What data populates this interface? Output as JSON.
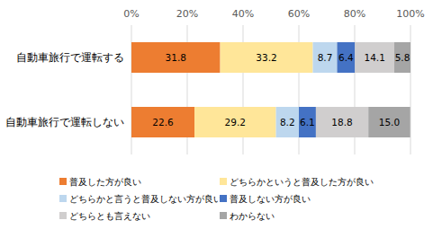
{
  "chart_data": {
    "type": "bar",
    "orientation": "horizontal",
    "stacked": true,
    "data_labels": true,
    "grid": true,
    "legend": "bottom",
    "categories": [
      "自動車旅行で運転する",
      "自動車旅行で運転しない"
    ],
    "series": [
      {
        "name": "普及した方が良い",
        "color": "#ed7d31",
        "values": [
          31.8,
          22.6
        ]
      },
      {
        "name": "どちらかというと普及した方が良い",
        "color": "#ffe699",
        "values": [
          33.2,
          29.2
        ]
      },
      {
        "name": "どちらかと言うと普及しない方が良い",
        "color": "#bdd7ee",
        "values": [
          8.7,
          8.2
        ]
      },
      {
        "name": "普及しない方が良い",
        "color": "#4472c4",
        "values": [
          6.4,
          6.1
        ]
      },
      {
        "name": "どちらとも言えない",
        "color": "#d0cece",
        "values": [
          14.1,
          18.8
        ]
      },
      {
        "name": "わからない",
        "color": "#a5a5a5",
        "values": [
          5.8,
          15.0
        ],
        "value_labels": [
          "5.8",
          "15.0"
        ]
      }
    ],
    "xlim": [
      0,
      100
    ],
    "xticks": [
      {
        "value": 0,
        "label": "0%"
      },
      {
        "value": 20,
        "label": "20%"
      },
      {
        "value": 40,
        "label": "40%"
      },
      {
        "value": 60,
        "label": "60%"
      },
      {
        "value": 80,
        "label": "80%"
      },
      {
        "value": 100,
        "label": "100%"
      }
    ]
  }
}
